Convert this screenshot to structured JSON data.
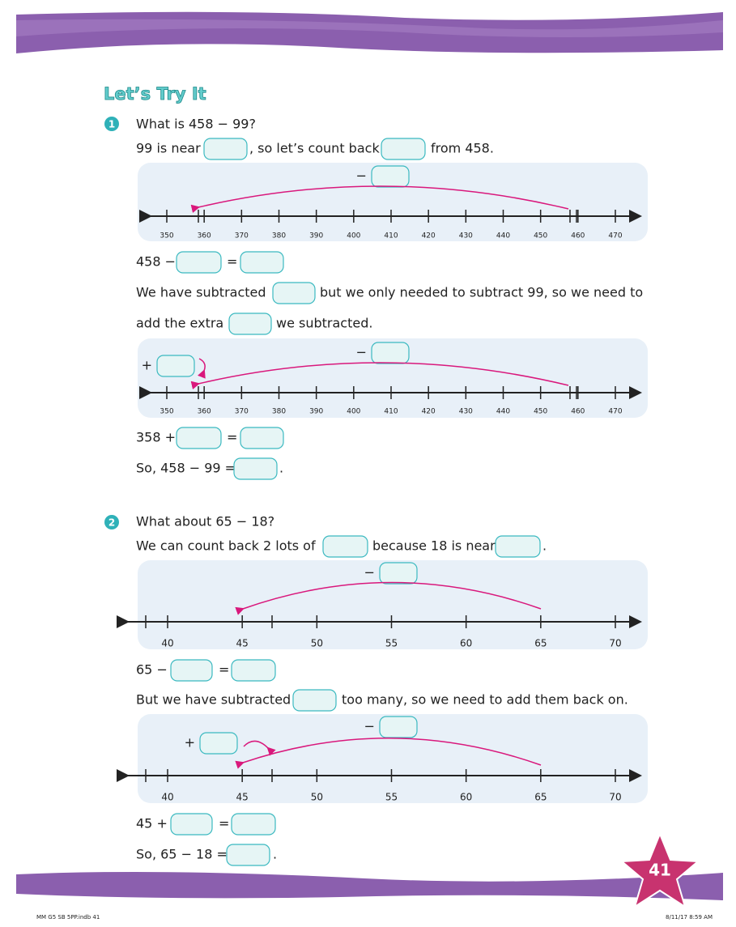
{
  "header": {
    "title": "Let’s Try It"
  },
  "questions": [
    {
      "number": "1",
      "prompt": "What is 458 − 99?",
      "lines": [
        [
          "99 is near",
          ", so let’s count back",
          "from 458."
        ],
        [
          "458 −",
          "="
        ],
        [
          "We have subtracted",
          "but we only needed to subtract 99, so we need to"
        ],
        [
          "add the extra",
          "we subtracted."
        ],
        [
          "358 +",
          "="
        ],
        [
          "So, 458 − 99 =",
          "."
        ]
      ]
    },
    {
      "number": "2",
      "prompt": "What about 65 − 18?",
      "lines": [
        [
          "We can count back 2 lots of",
          "because 18 is near",
          "."
        ],
        [
          "65 −",
          "="
        ],
        [
          "But we have subtracted",
          "too many, so we need to add them back on."
        ],
        [
          "45 +",
          "="
        ],
        [
          "So, 65 − 18 =",
          "."
        ]
      ]
    }
  ],
  "number_lines": [
    {
      "minus": "−",
      "labels": [
        "350",
        "360",
        "370",
        "380",
        "390",
        "400",
        "410",
        "420",
        "430",
        "440",
        "450",
        "460",
        "470"
      ]
    },
    {
      "minus": "−",
      "plus": "+",
      "labels": [
        "350",
        "360",
        "370",
        "380",
        "390",
        "400",
        "410",
        "420",
        "430",
        "440",
        "450",
        "460",
        "470"
      ]
    },
    {
      "minus": "−",
      "labels": [
        "40",
        "45",
        "50",
        "55",
        "60",
        "65",
        "70"
      ]
    },
    {
      "minus": "−",
      "plus": "+",
      "labels": [
        "40",
        "45",
        "50",
        "55",
        "60",
        "65",
        "70"
      ]
    }
  ],
  "page_number": "41",
  "footer": {
    "left": "MM G5 SB 5PP.indb   41",
    "right": "8/11/17   8:59 AM"
  }
}
